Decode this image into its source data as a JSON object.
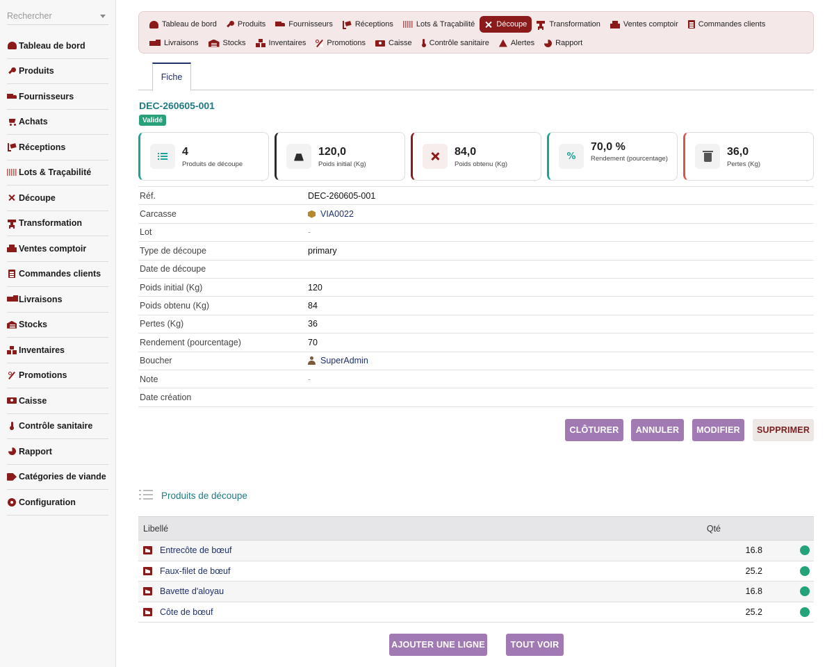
{
  "colors": {
    "accent": "#8b1a1a",
    "teal": "#1d7b82",
    "status_green": "#28a17a",
    "button_purple": "#a17ab3"
  },
  "sidebar": {
    "search_placeholder": "Rechercher",
    "items": [
      {
        "label": "Tableau de bord",
        "icon": "gauge-icon"
      },
      {
        "label": "Produits",
        "icon": "drumstick-icon"
      },
      {
        "label": "Fournisseurs",
        "icon": "truck-icon"
      },
      {
        "label": "Achats",
        "icon": "cart-icon"
      },
      {
        "label": "Réceptions",
        "icon": "dolly-icon"
      },
      {
        "label": "Lots & Traçabilité",
        "icon": "barcode-icon"
      },
      {
        "label": "Découpe",
        "icon": "scissors-icon"
      },
      {
        "label": "Transformation",
        "icon": "grinder-icon"
      },
      {
        "label": "Ventes comptoir",
        "icon": "cash-register-icon"
      },
      {
        "label": "Commandes clients",
        "icon": "clipboard-icon"
      },
      {
        "label": "Livraisons",
        "icon": "trucks-icon"
      },
      {
        "label": "Stocks",
        "icon": "warehouse-icon"
      },
      {
        "label": "Inventaires",
        "icon": "boxes-icon"
      },
      {
        "label": "Promotions",
        "icon": "percent-icon"
      },
      {
        "label": "Caisse",
        "icon": "money-icon"
      },
      {
        "label": "Contrôle sanitaire",
        "icon": "thermometer-icon"
      },
      {
        "label": "Rapport",
        "icon": "pie-chart-icon"
      },
      {
        "label": "Catégories de viande",
        "icon": "tags-icon"
      },
      {
        "label": "Configuration",
        "icon": "gear-icon"
      }
    ]
  },
  "topnav": {
    "row1": [
      {
        "label": "Tableau de bord",
        "icon": "gauge-icon"
      },
      {
        "label": "Produits",
        "icon": "drumstick-icon"
      },
      {
        "label": "Fournisseurs",
        "icon": "truck-icon"
      },
      {
        "label": "Réceptions",
        "icon": "dolly-icon"
      },
      {
        "label": "Lots & Traçabilité",
        "icon": "barcode-icon"
      },
      {
        "label": "Découpe",
        "icon": "scissors-icon",
        "active": true
      },
      {
        "label": "Transformation",
        "icon": "grinder-icon"
      },
      {
        "label": "Ventes comptoir",
        "icon": "cash-register-icon"
      },
      {
        "label": "Commandes clients",
        "icon": "clipboard-icon"
      }
    ],
    "row2": [
      {
        "label": "Livraisons",
        "icon": "trucks-icon"
      },
      {
        "label": "Stocks",
        "icon": "warehouse-icon"
      },
      {
        "label": "Inventaires",
        "icon": "boxes-icon"
      },
      {
        "label": "Promotions",
        "icon": "percent-icon"
      },
      {
        "label": "Caisse",
        "icon": "money-icon"
      },
      {
        "label": "Contrôle sanitaire",
        "icon": "thermometer-icon"
      },
      {
        "label": "Alertes",
        "icon": "alert-icon"
      },
      {
        "label": "Rapport",
        "icon": "pie-chart-icon"
      }
    ]
  },
  "tabs": {
    "fiche": "Fiche"
  },
  "record": {
    "title": "DEC-260605-001",
    "status": "Validé"
  },
  "kpis": [
    {
      "value": "4",
      "label": "Produits de découpe",
      "icon": "list-icon"
    },
    {
      "value": "120,0",
      "label": "Poids initial (Kg)",
      "icon": "weight-icon"
    },
    {
      "value": "84,0",
      "label": "Poids obtenu (Kg)",
      "icon": "scissors-icon"
    },
    {
      "value": "70,0 %",
      "label": "Rendement (pourcentage)",
      "icon": "percent-icon"
    },
    {
      "value": "36,0",
      "label": "Pertes (Kg)",
      "icon": "trash-icon"
    }
  ],
  "details": {
    "ref_label": "Réf.",
    "ref_value": "DEC-260605-001",
    "carcasse_label": "Carcasse",
    "carcasse_value": "VIA0022",
    "lot_label": "Lot",
    "lot_value": "-",
    "type_label": "Type de découpe",
    "type_value": "primary",
    "date_label": "Date de découpe",
    "date_value": "",
    "poids_initial_label": "Poids initial (Kg)",
    "poids_initial_value": "120",
    "poids_obtenu_label": "Poids obtenu (Kg)",
    "poids_obtenu_value": "84",
    "pertes_label": "Pertes (Kg)",
    "pertes_value": "36",
    "rendement_label": "Rendement (pourcentage)",
    "rendement_value": "70",
    "boucher_label": "Boucher",
    "boucher_value": "SuperAdmin",
    "note_label": "Note",
    "note_value": "-",
    "creation_label": "Date création",
    "creation_value": ""
  },
  "actions": {
    "cloturer": "CLÔTURER",
    "annuler": "ANNULER",
    "modifier": "MODIFIER",
    "supprimer": "SUPPRIMER"
  },
  "lines": {
    "section_title": "Produits de découpe",
    "col_label": "Libellé",
    "col_qty": "Qté",
    "rows": [
      {
        "label": "Entrecôte de bœuf",
        "qty": "16.8"
      },
      {
        "label": "Faux-filet de bœuf",
        "qty": "25.2"
      },
      {
        "label": "Bavette d'aloyau",
        "qty": "16.8"
      },
      {
        "label": "Côte de bœuf",
        "qty": "25.2"
      }
    ],
    "add_line": "AJOUTER UNE LIGNE",
    "see_all": "TOUT VOIR"
  }
}
